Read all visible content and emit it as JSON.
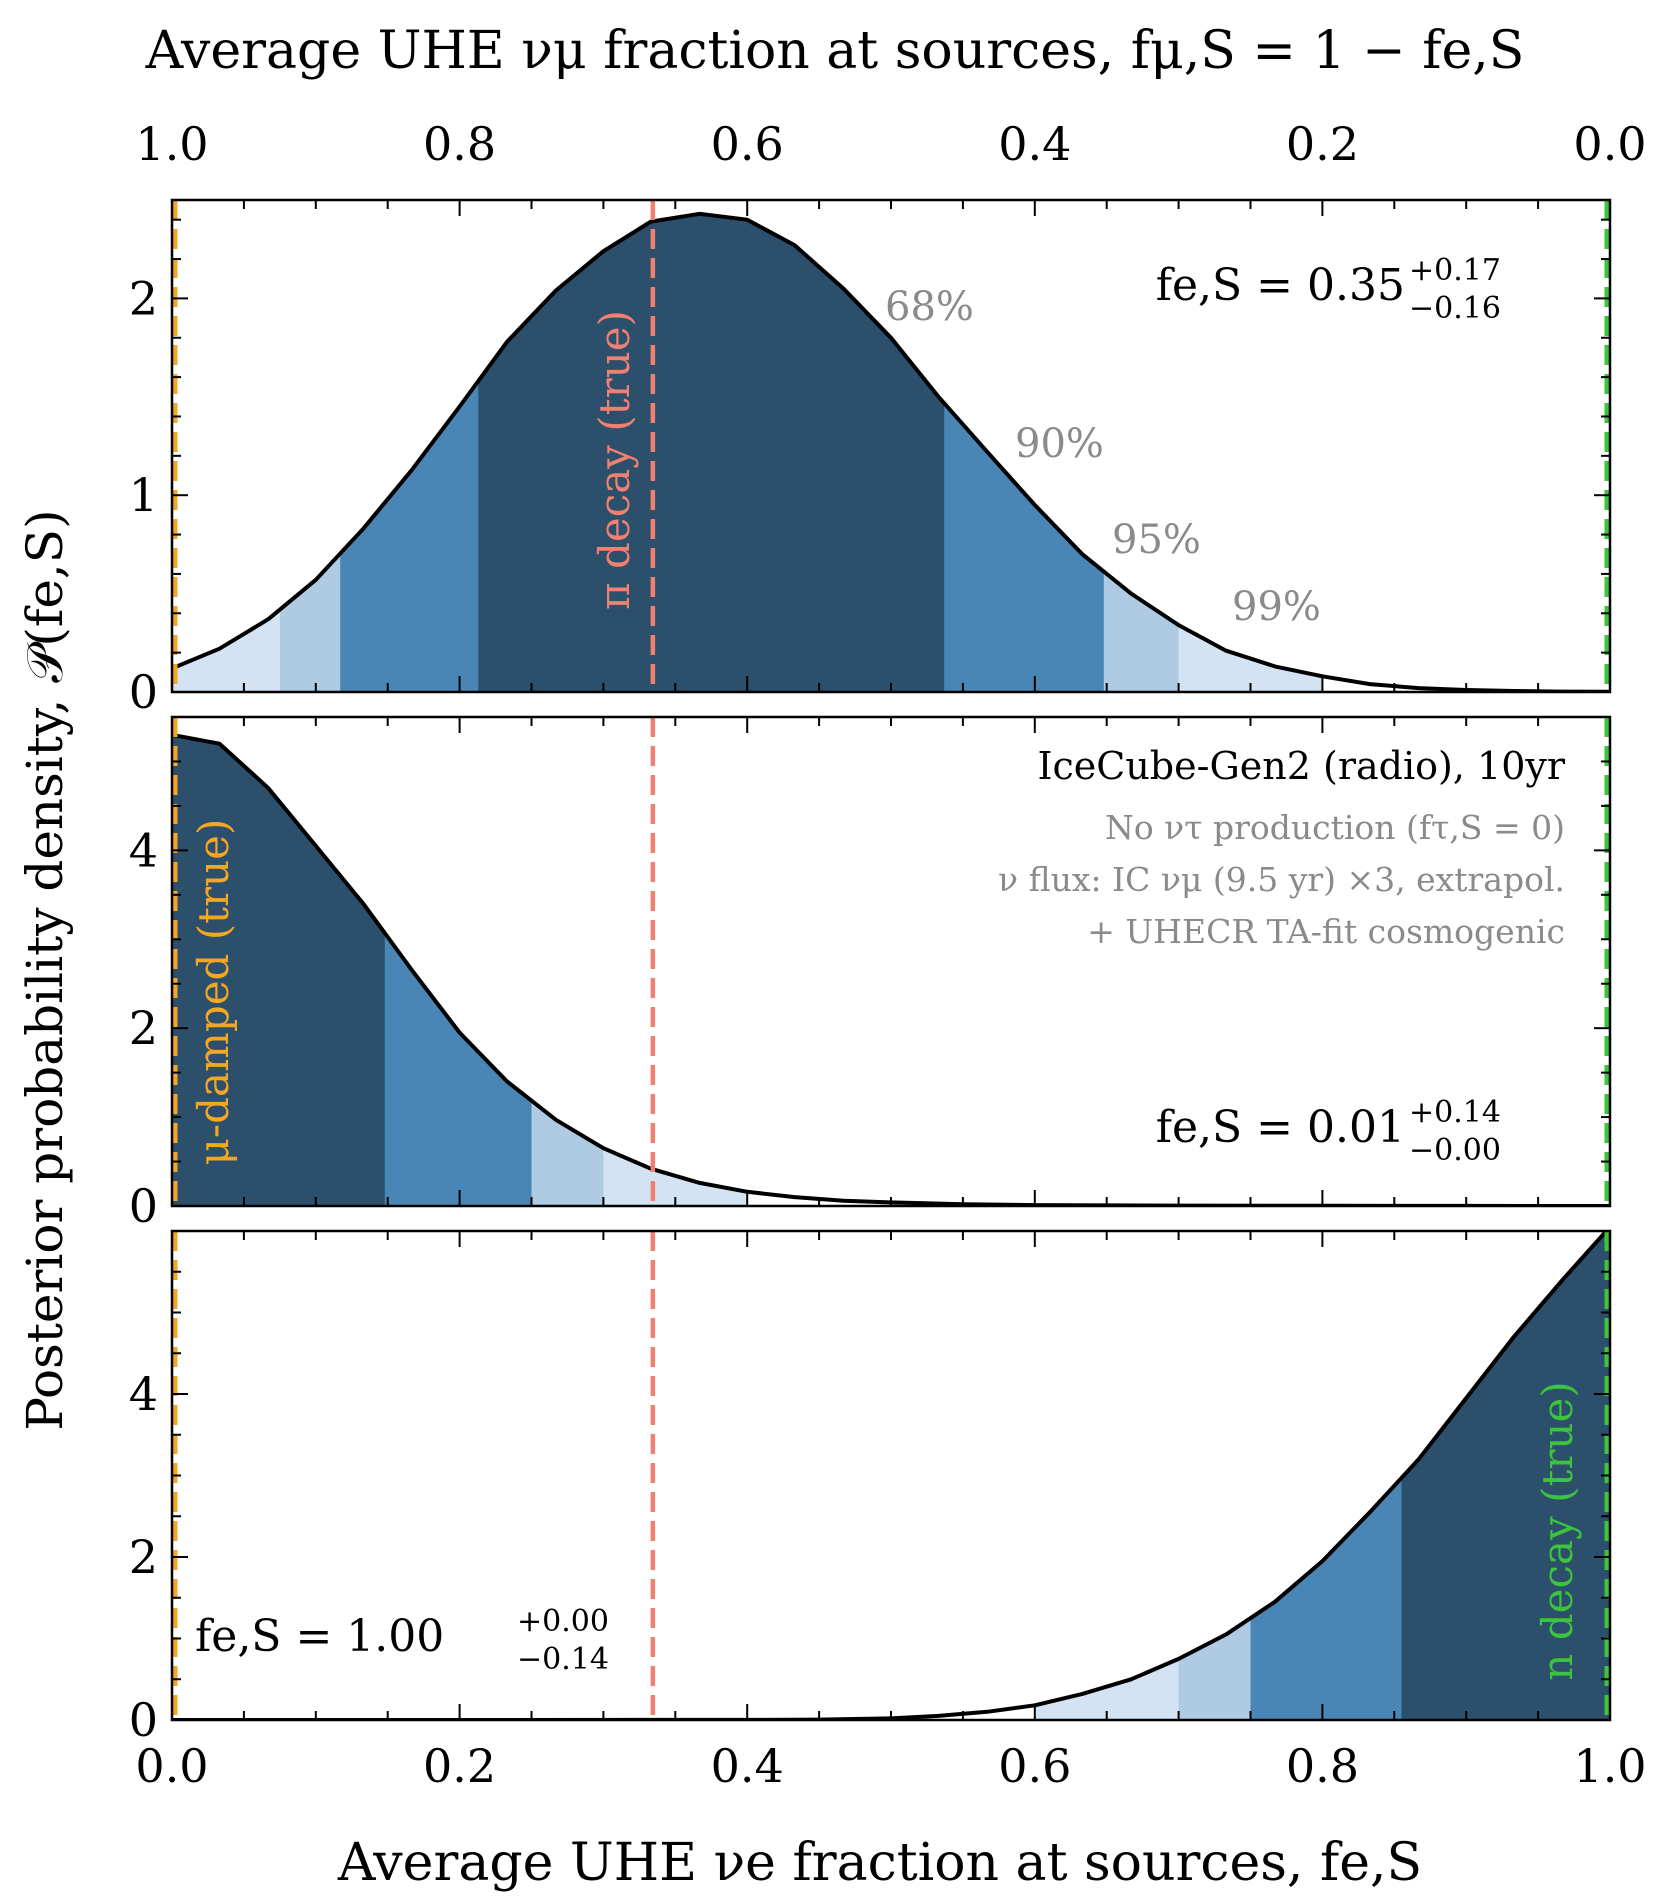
{
  "figure": {
    "top_axis_title": "Average UHE νμ fraction at sources, fμ,S = 1 − fe,S",
    "top_axis_ticks": [
      "1.0",
      "0.8",
      "0.6",
      "0.4",
      "0.2",
      "0.0"
    ],
    "bottom_axis_title": "Average UHE νe fraction at sources, fe,S",
    "bottom_axis_ticks": [
      "0.0",
      "0.2",
      "0.4",
      "0.6",
      "0.8",
      "1.0"
    ],
    "y_axis_title": "Posterior probability density, 𝒫(fe,S)",
    "colors": {
      "band_68": "#2c4f6b",
      "band_90": "#4a86b5",
      "band_95": "#afcbe3",
      "band_99": "#d3e3f3",
      "pi_line": "#f08070",
      "mu_line": "#f5a623",
      "n_line": "#3cc43c",
      "curve": "#000000",
      "grey_text": "#8a8a8a"
    }
  },
  "chart_data": [
    {
      "type": "area",
      "panel": "top",
      "xlabel": "Average UHE νe fraction at sources, fe,S",
      "ylabel": "Posterior probability density, 𝒫(fe,S)",
      "xlim": [
        0,
        1
      ],
      "ylim": [
        0,
        2.5
      ],
      "yticks": [
        "0",
        "1",
        "2"
      ],
      "true_label": "π decay (true)",
      "true_x": 0.333,
      "result_label": "fe,S = 0.35",
      "result_sup": "+0.17",
      "result_sub": "−0.16",
      "band_labels": [
        "68%",
        "90%",
        "95%",
        "99%"
      ],
      "bands": [
        {
          "level": "99%",
          "x0": 0.0,
          "x1": 0.8
        },
        {
          "level": "95%",
          "x0": 0.075,
          "x1": 0.7
        },
        {
          "level": "90%",
          "x0": 0.117,
          "x1": 0.648
        },
        {
          "level": "68%",
          "x0": 0.213,
          "x1": 0.537
        }
      ],
      "x": [
        0.0,
        0.033,
        0.067,
        0.1,
        0.133,
        0.167,
        0.2,
        0.233,
        0.267,
        0.3,
        0.333,
        0.367,
        0.4,
        0.433,
        0.467,
        0.5,
        0.533,
        0.567,
        0.6,
        0.633,
        0.667,
        0.7,
        0.733,
        0.767,
        0.8,
        0.833,
        0.867,
        0.9,
        0.933,
        0.967,
        1.0
      ],
      "y": [
        0.12,
        0.22,
        0.37,
        0.57,
        0.83,
        1.13,
        1.45,
        1.78,
        2.04,
        2.24,
        2.39,
        2.43,
        2.4,
        2.27,
        2.05,
        1.8,
        1.5,
        1.22,
        0.95,
        0.7,
        0.5,
        0.34,
        0.21,
        0.13,
        0.08,
        0.04,
        0.02,
        0.01,
        0.005,
        0.002,
        0.001
      ]
    },
    {
      "type": "area",
      "panel": "middle",
      "xlim": [
        0,
        1
      ],
      "ylim": [
        0,
        5.5
      ],
      "yticks": [
        "0",
        "2",
        "4"
      ],
      "true_label": "μ-damped (true)",
      "true_x": 0.0,
      "experiment": "IceCube-Gen2 (radio), 10yr",
      "note_lines": [
        "No ντ production (fτ,S = 0)",
        "ν flux: IC νμ (9.5 yr) ×3, extrapol.",
        "+ UHECR TA-fit cosmogenic"
      ],
      "result_label": "fe,S = 0.01",
      "result_sup": "+0.14",
      "result_sub": "−0.00",
      "bands": [
        {
          "level": "99%",
          "x0": 0.0,
          "x1": 0.4
        },
        {
          "level": "95%",
          "x0": 0.0,
          "x1": 0.3
        },
        {
          "level": "90%",
          "x0": 0.0,
          "x1": 0.25
        },
        {
          "level": "68%",
          "x0": 0.0,
          "x1": 0.148
        }
      ],
      "x": [
        0.0,
        0.033,
        0.067,
        0.1,
        0.133,
        0.167,
        0.2,
        0.233,
        0.267,
        0.3,
        0.333,
        0.367,
        0.4,
        0.433,
        0.467,
        0.5,
        0.55,
        0.6,
        0.7,
        0.8,
        0.9,
        1.0
      ],
      "y": [
        5.3,
        5.2,
        4.7,
        4.05,
        3.4,
        2.65,
        1.95,
        1.4,
        0.97,
        0.65,
        0.42,
        0.26,
        0.16,
        0.1,
        0.06,
        0.04,
        0.02,
        0.01,
        0.004,
        0.002,
        0.001,
        0.0
      ]
    },
    {
      "type": "area",
      "panel": "bottom",
      "xlim": [
        0,
        1
      ],
      "ylim": [
        0,
        6.0
      ],
      "yticks": [
        "0",
        "2",
        "4"
      ],
      "xticks": [
        "0.0",
        "0.2",
        "0.4",
        "0.6",
        "0.8",
        "1.0"
      ],
      "true_label": "n decay (true)",
      "true_x": 1.0,
      "result_label": "fe,S = 1.00",
      "result_sup": "+0.00",
      "result_sub": "−0.14",
      "bands": [
        {
          "level": "99%",
          "x0": 0.6,
          "x1": 1.0
        },
        {
          "level": "95%",
          "x0": 0.7,
          "x1": 1.0
        },
        {
          "level": "90%",
          "x0": 0.75,
          "x1": 1.0
        },
        {
          "level": "68%",
          "x0": 0.855,
          "x1": 1.0
        }
      ],
      "x": [
        0.0,
        0.4,
        0.45,
        0.5,
        0.533,
        0.567,
        0.6,
        0.633,
        0.667,
        0.7,
        0.733,
        0.767,
        0.8,
        0.833,
        0.867,
        0.9,
        0.933,
        0.967,
        1.0
      ],
      "y": [
        0.0,
        0.001,
        0.005,
        0.02,
        0.05,
        0.1,
        0.18,
        0.32,
        0.5,
        0.75,
        1.05,
        1.45,
        1.95,
        2.55,
        3.2,
        3.95,
        4.7,
        5.4,
        6.05
      ]
    }
  ]
}
